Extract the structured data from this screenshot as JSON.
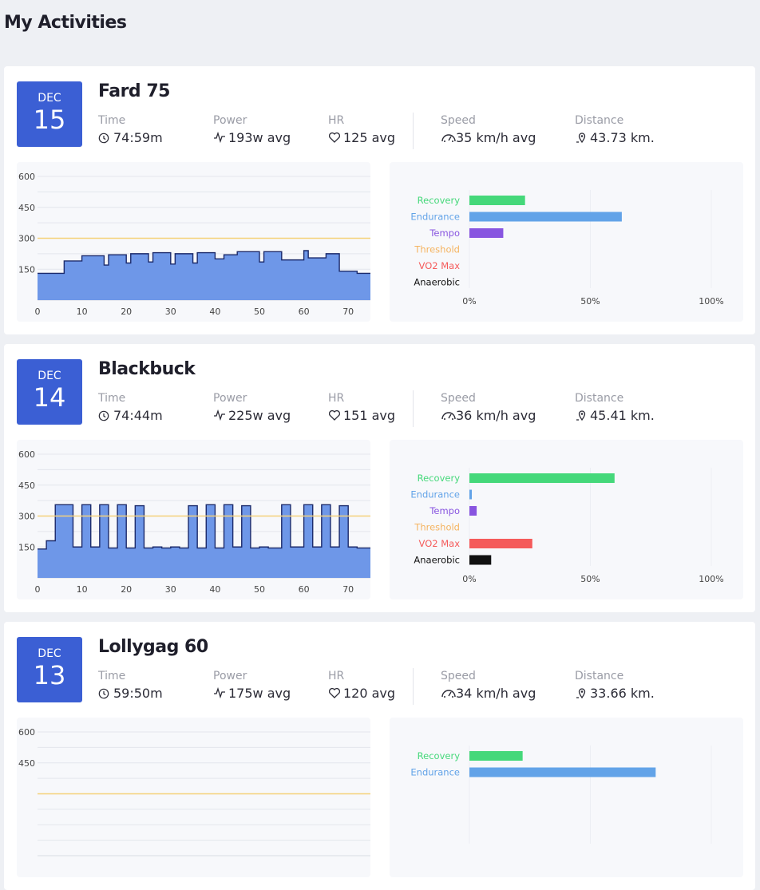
{
  "page": {
    "title": "My Activities"
  },
  "colors": {
    "accent": "#3b5fd4",
    "recovery": "#45d87a",
    "endurance": "#62a3e8",
    "tempo": "#8855e0",
    "threshold": "#f5b461",
    "vo2max": "#f55a5a",
    "anaerobic": "#111111",
    "power_fill": "#6e97e8",
    "power_line": "#1b2a6b",
    "ftp_line": "#f5d27a"
  },
  "stat_labels": {
    "time": "Time",
    "power": "Power",
    "hr": "HR",
    "speed": "Speed",
    "distance": "Distance"
  },
  "activities": [
    {
      "month": "DEC",
      "day": "15",
      "name": "Fard 75",
      "time": "74:59m",
      "power": "193w avg",
      "hr": "125 avg",
      "speed": "35 km/h avg",
      "distance": "43.73 km."
    },
    {
      "month": "DEC",
      "day": "14",
      "name": "Blackbuck",
      "time": "74:44m",
      "power": "225w avg",
      "hr": "151 avg",
      "speed": "36 km/h avg",
      "distance": "45.41 km."
    },
    {
      "month": "DEC",
      "day": "13",
      "name": "Lollygag 60",
      "time": "59:50m",
      "power": "175w avg",
      "hr": "120 avg",
      "speed": "34 km/h avg",
      "distance": "33.66 km."
    }
  ],
  "chart_data": [
    {
      "type": "area",
      "x_ticks": [
        0,
        10,
        20,
        30,
        40,
        50,
        60,
        70
      ],
      "y_ticks": [
        150,
        300,
        450,
        600
      ],
      "xlim": [
        0,
        75
      ],
      "ylim": [
        0,
        600
      ],
      "threshold_line": 300,
      "series": [
        {
          "x": [
            0,
            6,
            6,
            10,
            10,
            15,
            15,
            16,
            16,
            20,
            20,
            21,
            21,
            25,
            25,
            26,
            26,
            30,
            30,
            31,
            31,
            35,
            35,
            36,
            36,
            40,
            40,
            42,
            42,
            45,
            45,
            50,
            50,
            51,
            51,
            55,
            55,
            60,
            60,
            61,
            61,
            65,
            65,
            68,
            68,
            72,
            72,
            75
          ],
          "values": [
            130,
            130,
            190,
            190,
            215,
            215,
            170,
            170,
            220,
            220,
            180,
            180,
            225,
            225,
            185,
            185,
            230,
            230,
            175,
            175,
            225,
            225,
            180,
            180,
            230,
            230,
            200,
            200,
            220,
            220,
            235,
            235,
            185,
            185,
            235,
            235,
            195,
            195,
            240,
            240,
            205,
            205,
            225,
            225,
            140,
            140,
            130,
            130
          ]
        }
      ]
    },
    {
      "type": "bar",
      "categories": [
        "Recovery",
        "Endurance",
        "Tempo",
        "Threshold",
        "VO2 Max",
        "Anaerobic"
      ],
      "values": [
        23,
        63,
        14,
        0,
        0,
        0
      ],
      "xlim": [
        0,
        100
      ],
      "x_ticks": [
        "0%",
        "50%",
        "100%"
      ]
    },
    {
      "type": "area",
      "x_ticks": [
        0,
        10,
        20,
        30,
        40,
        50,
        60,
        70
      ],
      "y_ticks": [
        150,
        300,
        450,
        600
      ],
      "xlim": [
        0,
        75
      ],
      "ylim": [
        0,
        600
      ],
      "threshold_line": 300,
      "series": [
        {
          "x": [
            0,
            2,
            2,
            4,
            4,
            8,
            8,
            10,
            10,
            12,
            12,
            14,
            14,
            16,
            16,
            18,
            18,
            20,
            20,
            22,
            22,
            24,
            24,
            26,
            26,
            28,
            28,
            30,
            30,
            32,
            32,
            34,
            34,
            36,
            36,
            38,
            38,
            40,
            40,
            42,
            42,
            44,
            44,
            46,
            46,
            48,
            48,
            50,
            50,
            52,
            52,
            55,
            55,
            57,
            57,
            60,
            60,
            62,
            62,
            64,
            64,
            66,
            66,
            68,
            68,
            70,
            70,
            72,
            72,
            75
          ],
          "values": [
            140,
            140,
            180,
            180,
            355,
            355,
            150,
            150,
            355,
            355,
            150,
            150,
            355,
            355,
            145,
            145,
            355,
            355,
            145,
            145,
            350,
            350,
            145,
            145,
            150,
            150,
            145,
            145,
            150,
            150,
            145,
            145,
            350,
            350,
            145,
            145,
            355,
            355,
            145,
            145,
            355,
            355,
            150,
            150,
            350,
            350,
            145,
            145,
            150,
            150,
            145,
            145,
            355,
            355,
            150,
            150,
            355,
            355,
            150,
            150,
            355,
            355,
            150,
            150,
            350,
            350,
            150,
            150,
            145,
            145
          ]
        }
      ]
    },
    {
      "type": "bar",
      "categories": [
        "Recovery",
        "Endurance",
        "Tempo",
        "Threshold",
        "VO2 Max",
        "Anaerobic"
      ],
      "values": [
        60,
        1,
        3,
        0,
        26,
        9
      ],
      "xlim": [
        0,
        100
      ],
      "x_ticks": [
        "0%",
        "50%",
        "100%"
      ]
    },
    {
      "type": "area",
      "x_ticks": [],
      "y_ticks": [
        450,
        600
      ],
      "xlim": [
        0,
        60
      ],
      "ylim": [
        0,
        600
      ],
      "threshold_line": 300,
      "series": []
    },
    {
      "type": "bar",
      "categories": [
        "Recovery",
        "Endurance"
      ],
      "values": [
        22,
        77
      ],
      "xlim": [
        0,
        100
      ],
      "x_ticks": []
    }
  ]
}
